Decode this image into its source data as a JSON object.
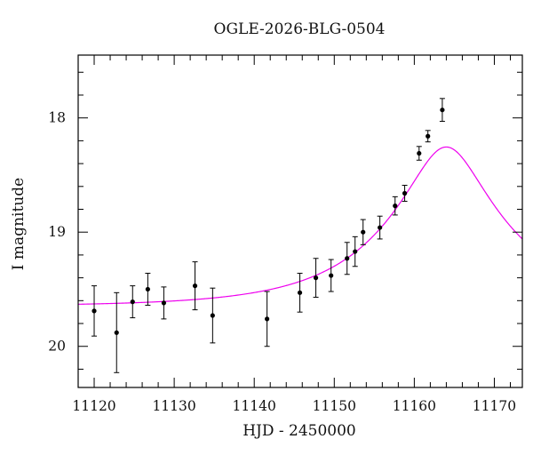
{
  "chart_data": {
    "type": "scatter",
    "title": "OGLE-2026-BLG-0504",
    "xlabel": "HJD - 2450000",
    "ylabel": "I magnitude",
    "xlim": [
      11118,
      11173.5
    ],
    "ylim": [
      20.36,
      17.45
    ],
    "y_inverted": true,
    "grid": false,
    "x_ticks": [
      11120,
      11130,
      11140,
      11150,
      11160,
      11170
    ],
    "y_ticks": [
      18,
      19,
      20
    ],
    "x_tick_labels": [
      "11120",
      "11130",
      "11140",
      "11150",
      "11160",
      "11170"
    ],
    "y_tick_labels": [
      "18",
      "19",
      "20"
    ],
    "colors": {
      "points": "#000000",
      "model": "#ee00ee",
      "axes": "#000000"
    },
    "series": [
      {
        "kind": "points_with_errorbars",
        "points": [
          {
            "x": 11120.0,
            "y": 19.69,
            "err": 0.22
          },
          {
            "x": 11122.8,
            "y": 19.88,
            "err": 0.35
          },
          {
            "x": 11124.8,
            "y": 19.61,
            "err": 0.14
          },
          {
            "x": 11126.7,
            "y": 19.5,
            "err": 0.14
          },
          {
            "x": 11128.7,
            "y": 19.62,
            "err": 0.14
          },
          {
            "x": 11132.6,
            "y": 19.47,
            "err": 0.21
          },
          {
            "x": 11134.8,
            "y": 19.73,
            "err": 0.24
          },
          {
            "x": 11141.6,
            "y": 19.76,
            "err": 0.24
          },
          {
            "x": 11145.7,
            "y": 19.53,
            "err": 0.17
          },
          {
            "x": 11147.7,
            "y": 19.4,
            "err": 0.17
          },
          {
            "x": 11149.6,
            "y": 19.38,
            "err": 0.14
          },
          {
            "x": 11151.6,
            "y": 19.23,
            "err": 0.14
          },
          {
            "x": 11152.6,
            "y": 19.17,
            "err": 0.13
          },
          {
            "x": 11153.6,
            "y": 19.0,
            "err": 0.11
          },
          {
            "x": 11155.7,
            "y": 18.96,
            "err": 0.1
          },
          {
            "x": 11157.6,
            "y": 18.77,
            "err": 0.08
          },
          {
            "x": 11158.8,
            "y": 18.66,
            "err": 0.07
          },
          {
            "x": 11160.6,
            "y": 18.31,
            "err": 0.06
          },
          {
            "x": 11161.7,
            "y": 18.16,
            "err": 0.05
          },
          {
            "x": 11163.5,
            "y": 17.93,
            "err": 0.1
          }
        ]
      },
      {
        "kind": "model_curve",
        "model": {
          "t0": 11164.0,
          "tE": 15.5,
          "u0": 0.285,
          "baseline": 19.65
        }
      }
    ]
  }
}
